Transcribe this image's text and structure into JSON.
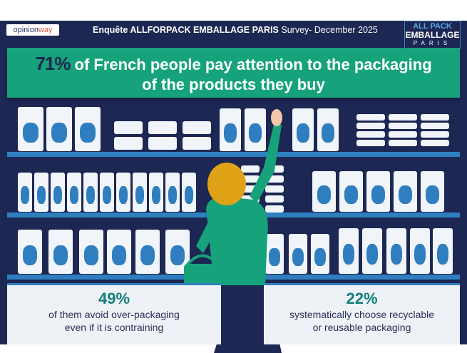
{
  "header": {
    "logo_left": {
      "part1": "opinion",
      "part2": "way"
    },
    "title_bold": "Enquête ALLFORPACK EMBALLAGE PARIS",
    "title_rest": " Survey- December 2025",
    "logo_right": {
      "line1": "ALL PACK",
      "line2": "EMBALLAGE",
      "line3": "PARIS"
    }
  },
  "banner": {
    "percent": "71%",
    "text1": "of French people pay attention to the packaging",
    "text2": "of the products they buy"
  },
  "stats": [
    {
      "percent": "49%",
      "line1": "of them avoid over-packaging",
      "line2": "even if it is contraining"
    },
    {
      "percent": "22%",
      "line1": "systematically choose recyclable",
      "line2": "or reusable packaging"
    }
  ],
  "colors": {
    "navy": "#1d2753",
    "green": "#16a37b",
    "blue": "#2f7fc0",
    "teal": "#117f7b"
  }
}
